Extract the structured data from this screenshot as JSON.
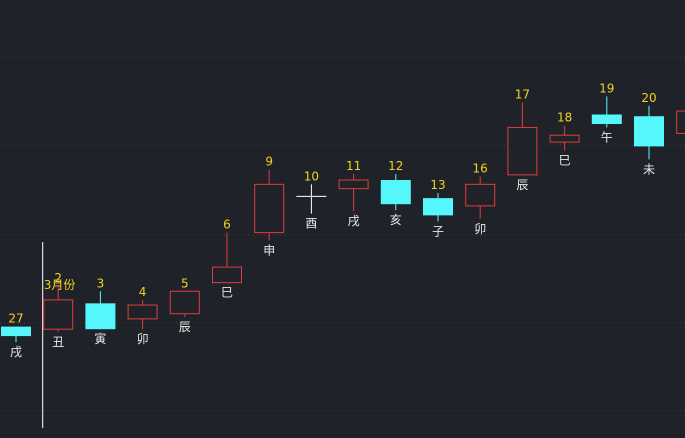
{
  "chart_data": {
    "type": "candlestick",
    "colors": {
      "background": "#1f2329",
      "up": "#e03c3c",
      "down": "#55f7fc",
      "doji": "#ffffff",
      "number_label": "#f1d21e",
      "branch_label": "#e8e8e8",
      "grid": "#3a3f47",
      "month_line": "#ffffff"
    },
    "grid": true,
    "month_marker": {
      "label": "3月份",
      "before_index": 1
    },
    "candles": [
      {
        "num": "27",
        "branch": "戌",
        "open": 25.6,
        "close": 24.5,
        "high": 25.6,
        "low": 23.8,
        "kind": "down"
      },
      {
        "num": "2",
        "branch": "丑",
        "open": 25.3,
        "close": 28.7,
        "high": 30.3,
        "low": 25.0,
        "kind": "up"
      },
      {
        "num": "3",
        "branch": "寅",
        "open": 28.3,
        "close": 25.3,
        "high": 29.7,
        "low": 25.3,
        "kind": "down"
      },
      {
        "num": "4",
        "branch": "卯",
        "open": 26.5,
        "close": 28.1,
        "high": 28.7,
        "low": 25.3,
        "kind": "up"
      },
      {
        "num": "5",
        "branch": "辰",
        "open": 27.1,
        "close": 29.7,
        "high": 29.7,
        "low": 26.7,
        "kind": "up"
      },
      {
        "num": "6",
        "branch": "巳",
        "open": 30.7,
        "close": 32.5,
        "high": 36.5,
        "low": 30.7,
        "kind": "up"
      },
      {
        "num": "9",
        "branch": "申",
        "open": 36.5,
        "close": 42.1,
        "high": 43.8,
        "low": 35.6,
        "kind": "up"
      },
      {
        "num": "10",
        "branch": "酉",
        "open": 40.7,
        "close": 40.7,
        "high": 42.1,
        "low": 38.7,
        "kind": "doji"
      },
      {
        "num": "11",
        "branch": "戌",
        "open": 41.6,
        "close": 42.6,
        "high": 43.3,
        "low": 39.0,
        "kind": "up"
      },
      {
        "num": "12",
        "branch": "亥",
        "open": 42.6,
        "close": 39.8,
        "high": 43.3,
        "low": 39.1,
        "kind": "down"
      },
      {
        "num": "13",
        "branch": "子",
        "open": 40.5,
        "close": 38.5,
        "high": 41.1,
        "low": 37.8,
        "kind": "down"
      },
      {
        "num": "16",
        "branch": "卯",
        "open": 39.6,
        "close": 42.1,
        "high": 43.0,
        "low": 38.1,
        "kind": "up"
      },
      {
        "num": "17",
        "branch": "辰",
        "open": 43.2,
        "close": 48.7,
        "high": 51.6,
        "low": 43.2,
        "kind": "up"
      },
      {
        "num": "18",
        "branch": "巳",
        "open": 47.0,
        "close": 47.8,
        "high": 48.9,
        "low": 46.0,
        "kind": "up"
      },
      {
        "num": "19",
        "branch": "午",
        "open": 50.2,
        "close": 49.1,
        "high": 52.3,
        "low": 48.7,
        "kind": "down"
      },
      {
        "num": "20",
        "branch": "未",
        "open": 50.0,
        "close": 46.5,
        "high": 51.2,
        "low": 45.0,
        "kind": "down"
      }
    ],
    "partial_candle": {
      "open": 48.0,
      "close": 50.6,
      "kind": "up"
    }
  }
}
